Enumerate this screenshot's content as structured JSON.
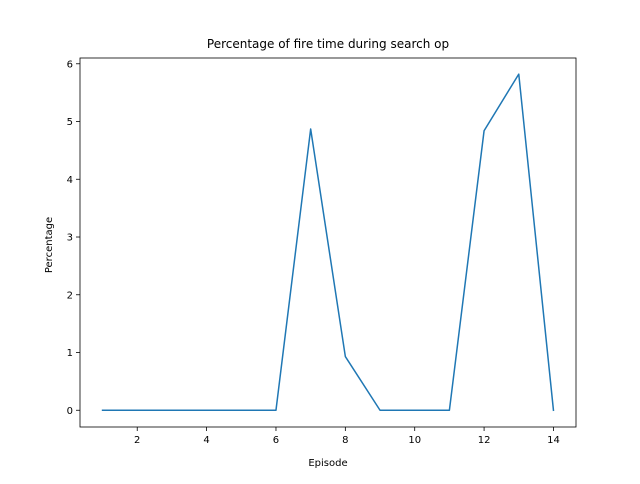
{
  "chart_data": {
    "type": "line",
    "title": "Percentage of fire time during search op",
    "xlabel": "Episode",
    "ylabel": "Percentage",
    "xlim": [
      0.35,
      14.65
    ],
    "ylim": [
      -0.29,
      6.1
    ],
    "xticks": [
      2,
      4,
      6,
      8,
      10,
      12,
      14
    ],
    "yticks": [
      0,
      1,
      2,
      3,
      4,
      5,
      6
    ],
    "grid": false,
    "legend": "none",
    "series": [
      {
        "color": "#1f77b4",
        "x": [
          1,
          2,
          3,
          4,
          5,
          6,
          7,
          8,
          9,
          10,
          11,
          12,
          13,
          14
        ],
        "y": [
          0,
          0,
          0,
          0,
          0,
          0,
          4.87,
          0.93,
          0,
          0,
          0,
          4.84,
          5.82,
          0
        ]
      }
    ]
  }
}
